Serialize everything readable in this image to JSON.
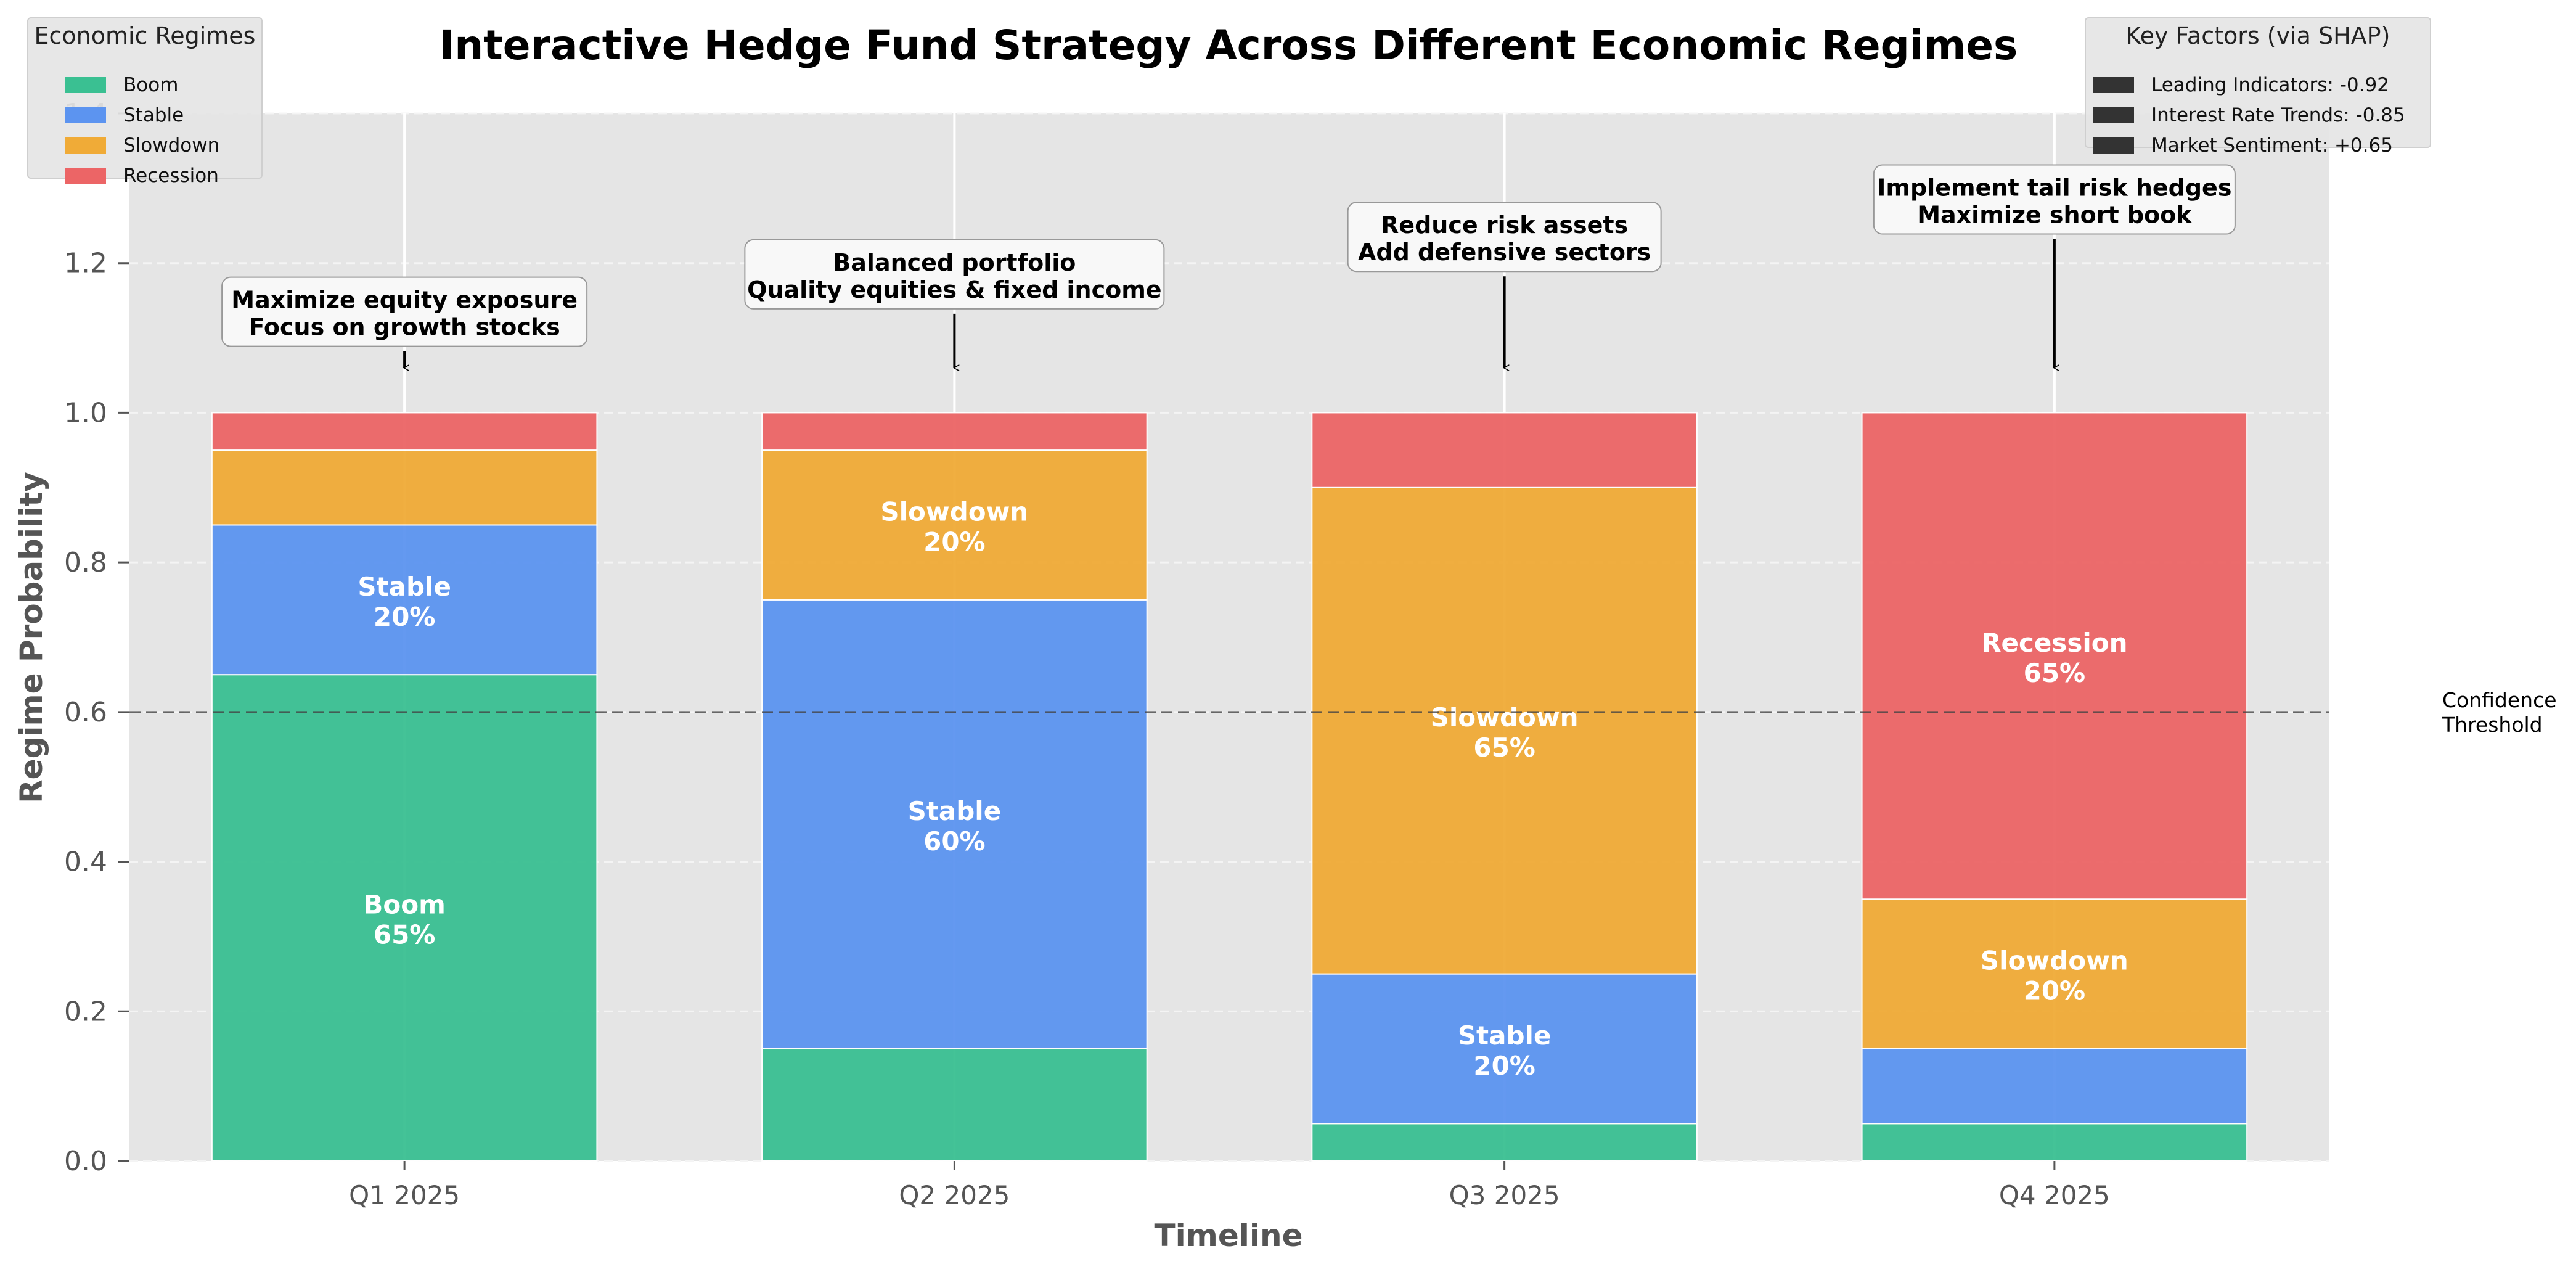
{
  "chart_data": {
    "type": "bar",
    "stacked": true,
    "title": "Interactive Hedge Fund Strategy Across Different Economic Regimes",
    "xlabel": "Timeline",
    "ylabel": "Regime Probability",
    "categories": [
      "Q1 2025",
      "Q2 2025",
      "Q3 2025",
      "Q4 2025"
    ],
    "ylim": [
      0,
      1.4
    ],
    "y_ticks": [
      "0.0",
      "0.2",
      "0.4",
      "0.6",
      "0.8",
      "1.0",
      "1.2",
      "1.4"
    ],
    "grid": true,
    "series": [
      {
        "name": "Boom",
        "color": "#3ac092",
        "values": [
          0.65,
          0.15,
          0.05,
          0.05
        ]
      },
      {
        "name": "Stable",
        "color": "#5c94f0",
        "values": [
          0.2,
          0.6,
          0.2,
          0.1
        ]
      },
      {
        "name": "Slowdown",
        "color": "#f0ab37",
        "values": [
          0.1,
          0.2,
          0.65,
          0.2
        ]
      },
      {
        "name": "Recession",
        "color": "#ec6566",
        "values": [
          0.05,
          0.05,
          0.1,
          0.65
        ]
      }
    ],
    "bar_labels": [
      [
        {
          "series": "Boom",
          "text": "Boom",
          "pct": "65%"
        },
        {
          "series": "Stable",
          "text": "Stable",
          "pct": "20%"
        }
      ],
      [
        {
          "series": "Stable",
          "text": "Stable",
          "pct": "60%"
        },
        {
          "series": "Slowdown",
          "text": "Slowdown",
          "pct": "20%"
        }
      ],
      [
        {
          "series": "Stable",
          "text": "Stable",
          "pct": "20%"
        },
        {
          "series": "Slowdown",
          "text": "Slowdown",
          "pct": "65%"
        }
      ],
      [
        {
          "series": "Slowdown",
          "text": "Slowdown",
          "pct": "20%"
        },
        {
          "series": "Recession",
          "text": "Recession",
          "pct": "65%"
        }
      ]
    ],
    "annotations": [
      {
        "lines": [
          "Maximize equity exposure",
          "Focus on growth stocks"
        ],
        "text_y": 1.135
      },
      {
        "lines": [
          "Balanced portfolio",
          "Quality equities & fixed income"
        ],
        "text_y": 1.185
      },
      {
        "lines": [
          "Reduce risk assets",
          "Add defensive sectors"
        ],
        "text_y": 1.235
      },
      {
        "lines": [
          "Implement tail risk hedges",
          "Maximize short book"
        ],
        "text_y": 1.285
      }
    ],
    "threshold": {
      "value": 0.6,
      "label_lines": [
        "Confidence",
        "Threshold"
      ]
    },
    "legend": {
      "title": "Economic Regimes",
      "placement": "top-left"
    },
    "key_factors": {
      "title": "Key Factors (via SHAP)",
      "placement": "top-right",
      "items": [
        "Leading Indicators: -0.92",
        "Interest Rate Trends: -0.85",
        "Market Sentiment: +0.65"
      ]
    }
  }
}
